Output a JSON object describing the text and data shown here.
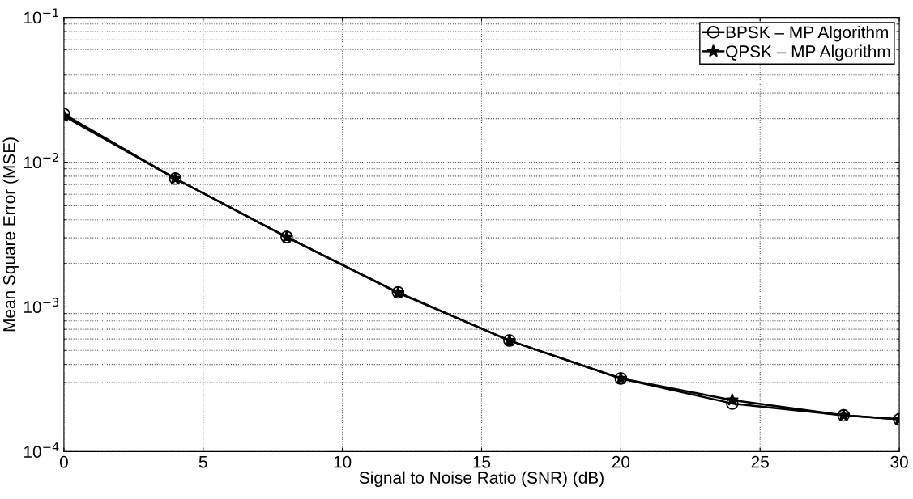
{
  "chart_data": {
    "type": "line",
    "xlabel": "Signal to Noise Ratio (SNR) (dB)",
    "ylabel": "Mean Square Error (MSE)",
    "log": "y",
    "grid": true,
    "legend": "top right",
    "line_style": "solid",
    "xlim": [
      0,
      30
    ],
    "xticks": [
      0,
      5,
      10,
      15,
      20,
      25,
      30
    ],
    "ylim": [
      0.0001,
      0.1
    ],
    "yticks": [
      {
        "value": 0.0001,
        "label": "10$^{−4}$"
      },
      {
        "value": 0.001,
        "label": "10$^{−3}$"
      },
      {
        "value": 0.01,
        "label": "10$^{−2}$"
      },
      {
        "value": 0.1,
        "label": "10$^{−1}$"
      }
    ],
    "series": [
      {
        "name": "BPSK – MP Algorithm",
        "color": "#000000",
        "marker": "circle",
        "x": [
          0,
          4,
          8,
          12,
          16,
          20,
          24,
          28,
          30
        ],
        "values": [
          0.0215,
          0.0077,
          0.00304,
          0.00126,
          0.000585,
          0.00032,
          0.000215,
          0.000178,
          0.000167
        ]
      },
      {
        "name": "QPSK – MP Algorithm",
        "color": "#000000",
        "marker": "star",
        "x": [
          0,
          4,
          8,
          12,
          16,
          20,
          24,
          28,
          30
        ],
        "values": [
          0.0208,
          0.0077,
          0.00304,
          0.00125,
          0.000585,
          0.00032,
          0.000227,
          0.000178,
          0.000167
        ]
      }
    ]
  }
}
